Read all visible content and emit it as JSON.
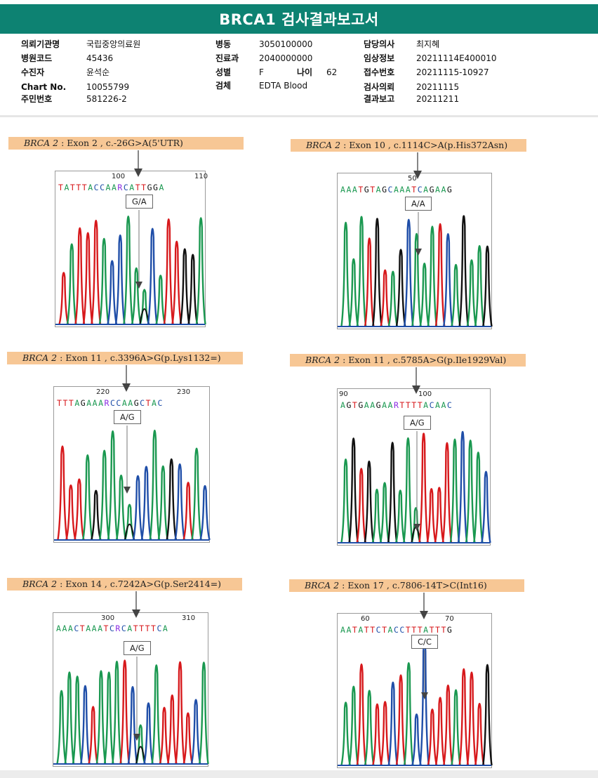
{
  "title": "BRCA1 검사결과보고서",
  "patient_info": {
    "col1": [
      {
        "key": "의뢰기관명",
        "value": "국립중앙의료원"
      },
      {
        "key": "병원코드",
        "value": "45436"
      },
      {
        "key": "수진자",
        "value": "윤석순"
      },
      {
        "key": "Chart No.",
        "value": "10055799"
      },
      {
        "key": "주민번호",
        "value": "581226-2"
      }
    ],
    "col2": [
      {
        "key": "병동",
        "value": "3050100000"
      },
      {
        "key": "진료과",
        "value": "2040000000"
      },
      {
        "key": "성별",
        "value": "F"
      },
      {
        "key": "검체",
        "value": "EDTA Blood"
      }
    ],
    "age": {
      "key": "나이",
      "value": "62"
    },
    "col3": [
      {
        "key": "담당의사",
        "value": "최지혜"
      },
      {
        "key": "임상정보",
        "value": "20211114E400010"
      },
      {
        "key": "접수번호",
        "value": "20211115-10927"
      },
      {
        "key": "검사의뢰",
        "value": "20211115"
      },
      {
        "key": "결과보고",
        "value": "20211211"
      }
    ]
  },
  "panels": [
    {
      "gene": "BRCA 2",
      "detail": ": Exon 2 , c.-26G>A(5'UTR)",
      "call": "G/A",
      "pos1": "100",
      "pos2": "110",
      "seq": [
        [
          "T",
          "red"
        ],
        [
          "A",
          "green"
        ],
        [
          "T",
          "red"
        ],
        [
          "T",
          "red"
        ],
        [
          "T",
          "red"
        ],
        [
          "A",
          "green"
        ],
        [
          "C",
          "blue"
        ],
        [
          "C",
          "blue"
        ],
        [
          "A",
          "green"
        ],
        [
          "A",
          "green"
        ],
        [
          "R",
          "purple"
        ],
        [
          "C",
          "blue"
        ],
        [
          "A",
          "green"
        ],
        [
          "T",
          "red"
        ],
        [
          "T",
          "red"
        ],
        [
          "G",
          "black"
        ],
        [
          "G",
          "black"
        ],
        [
          "A",
          "green"
        ]
      ]
    },
    {
      "gene": "BRCA 2",
      "detail": ": Exon 10 , c.1114C>A(p.His372Asn)",
      "call": "A/A",
      "pos1": "50",
      "pos2": "",
      "seq": [
        [
          "A",
          "green"
        ],
        [
          "A",
          "green"
        ],
        [
          "A",
          "green"
        ],
        [
          "T",
          "red"
        ],
        [
          "G",
          "black"
        ],
        [
          "T",
          "red"
        ],
        [
          "A",
          "green"
        ],
        [
          "G",
          "black"
        ],
        [
          "C",
          "blue"
        ],
        [
          "A",
          "green"
        ],
        [
          "A",
          "green"
        ],
        [
          "A",
          "green"
        ],
        [
          "T",
          "red"
        ],
        [
          "C",
          "blue"
        ],
        [
          "A",
          "green"
        ],
        [
          "G",
          "black"
        ],
        [
          "A",
          "green"
        ],
        [
          "A",
          "green"
        ],
        [
          "G",
          "black"
        ]
      ]
    },
    {
      "gene": "BRCA 2",
      "detail": ": Exon 11 , c.3396A>G(p.Lys1132=)",
      "call": "A/G",
      "pos1": "220",
      "pos2": "230",
      "seq": [
        [
          "T",
          "red"
        ],
        [
          "T",
          "red"
        ],
        [
          "T",
          "red"
        ],
        [
          "A",
          "green"
        ],
        [
          "G",
          "black"
        ],
        [
          "A",
          "green"
        ],
        [
          "A",
          "green"
        ],
        [
          "A",
          "green"
        ],
        [
          "R",
          "purple"
        ],
        [
          "C",
          "blue"
        ],
        [
          "C",
          "blue"
        ],
        [
          "A",
          "green"
        ],
        [
          "A",
          "green"
        ],
        [
          "G",
          "black"
        ],
        [
          "C",
          "blue"
        ],
        [
          "T",
          "red"
        ],
        [
          "A",
          "green"
        ],
        [
          "C",
          "blue"
        ]
      ]
    },
    {
      "gene": "BRCA 2",
      "detail": ": Exon 11 , c.5785A>G(p.Ile1929Val)",
      "call": "A/G",
      "pos1": "90",
      "pos2": "100",
      "seq": [
        [
          "A",
          "green"
        ],
        [
          "G",
          "black"
        ],
        [
          "T",
          "red"
        ],
        [
          "G",
          "black"
        ],
        [
          "A",
          "green"
        ],
        [
          "A",
          "green"
        ],
        [
          "G",
          "black"
        ],
        [
          "A",
          "green"
        ],
        [
          "A",
          "green"
        ],
        [
          "R",
          "purple"
        ],
        [
          "T",
          "red"
        ],
        [
          "T",
          "red"
        ],
        [
          "T",
          "red"
        ],
        [
          "T",
          "red"
        ],
        [
          "A",
          "green"
        ],
        [
          "C",
          "blue"
        ],
        [
          "A",
          "green"
        ],
        [
          "A",
          "green"
        ],
        [
          "C",
          "blue"
        ]
      ]
    },
    {
      "gene": "BRCA 2",
      "detail": ": Exon 14 , c.7242A>G(p.Ser2414=)",
      "call": "A/G",
      "pos1": "300",
      "pos2": "310",
      "seq": [
        [
          "A",
          "green"
        ],
        [
          "A",
          "green"
        ],
        [
          "A",
          "green"
        ],
        [
          "C",
          "blue"
        ],
        [
          "T",
          "red"
        ],
        [
          "A",
          "green"
        ],
        [
          "A",
          "green"
        ],
        [
          "A",
          "green"
        ],
        [
          "T",
          "red"
        ],
        [
          "C",
          "blue"
        ],
        [
          "R",
          "purple"
        ],
        [
          "C",
          "blue"
        ],
        [
          "A",
          "green"
        ],
        [
          "T",
          "red"
        ],
        [
          "T",
          "red"
        ],
        [
          "T",
          "red"
        ],
        [
          "T",
          "red"
        ],
        [
          "C",
          "blue"
        ],
        [
          "A",
          "green"
        ]
      ]
    },
    {
      "gene": "BRCA 2",
      "detail": ": Exon 17 , c.7806-14T>C(Int16)",
      "call": "C/C",
      "pos1": "60",
      "pos2": "70",
      "seq": [
        [
          "A",
          "green"
        ],
        [
          "A",
          "green"
        ],
        [
          "T",
          "red"
        ],
        [
          "A",
          "green"
        ],
        [
          "T",
          "red"
        ],
        [
          "T",
          "red"
        ],
        [
          "C",
          "blue"
        ],
        [
          "T",
          "red"
        ],
        [
          "A",
          "green"
        ],
        [
          "C",
          "blue"
        ],
        [
          "C",
          "blue"
        ],
        [
          "T",
          "red"
        ],
        [
          "T",
          "red"
        ],
        [
          "T",
          "red"
        ],
        [
          "A",
          "green"
        ],
        [
          "T",
          "red"
        ],
        [
          "T",
          "red"
        ],
        [
          "T",
          "red"
        ],
        [
          "G",
          "black"
        ]
      ]
    }
  ],
  "colors": {
    "header": "#0d8272",
    "label_bg": "#f7c795",
    "A": "#1a9850",
    "C": "#1f4ea8",
    "G": "#111111",
    "T": "#d7191c",
    "R": "#8a2be2"
  }
}
